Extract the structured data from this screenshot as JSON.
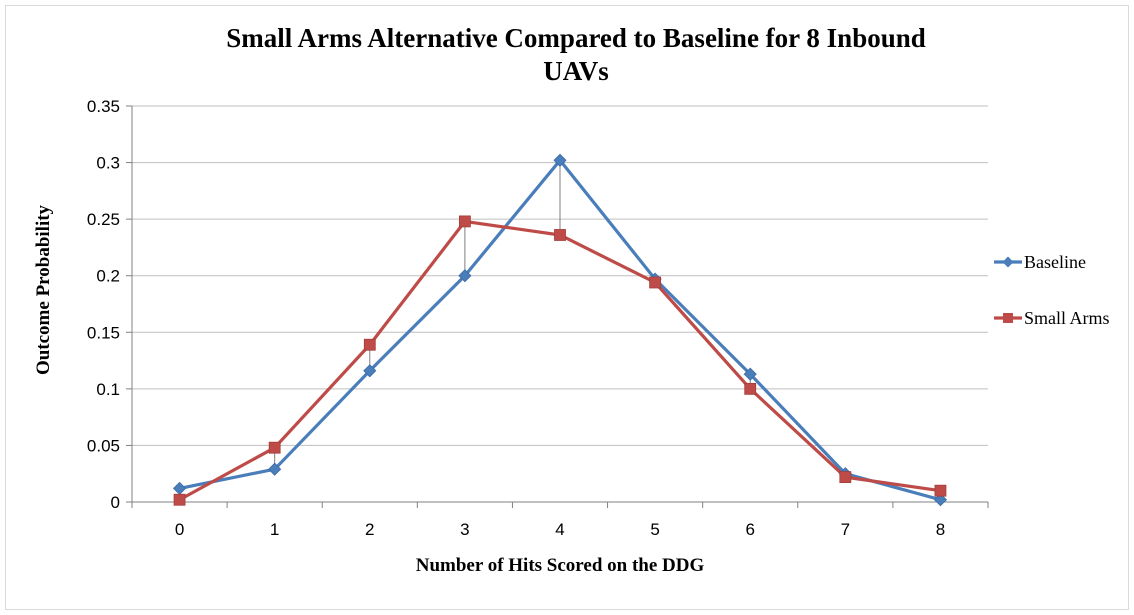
{
  "chart_data": {
    "type": "line",
    "title_line1": "Small Arms Alternative Compared to Baseline for 8 Inbound",
    "title_line2": "UAVs",
    "xlabel": "Number of Hits Scored on the DDG",
    "ylabel": "Outcome Probability",
    "categories": [
      "0",
      "1",
      "2",
      "3",
      "4",
      "5",
      "6",
      "7",
      "8"
    ],
    "x": [
      0,
      1,
      2,
      3,
      4,
      5,
      6,
      7,
      8
    ],
    "ylim": [
      0,
      0.35
    ],
    "yticks": [
      "0",
      "0.05",
      "0.1",
      "0.15",
      "0.2",
      "0.25",
      "0.3",
      "0.35"
    ],
    "ytick_values": [
      0,
      0.05,
      0.1,
      0.15,
      0.2,
      0.25,
      0.3,
      0.35
    ],
    "grid": "horizontal",
    "legend_position": "right",
    "drop_lines": true,
    "series": [
      {
        "name": "Baseline",
        "color": "#4a7ebb",
        "marker": "diamond",
        "values": [
          0.012,
          0.029,
          0.116,
          0.2,
          0.302,
          0.197,
          0.113,
          0.025,
          0.002
        ]
      },
      {
        "name": "Small Arms",
        "color": "#be4b48",
        "marker": "square",
        "values": [
          0.002,
          0.048,
          0.139,
          0.248,
          0.236,
          0.194,
          0.1,
          0.022,
          0.01
        ]
      }
    ]
  }
}
